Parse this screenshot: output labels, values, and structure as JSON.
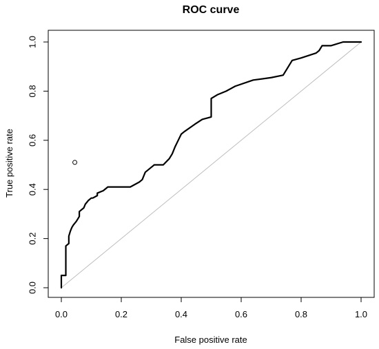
{
  "chart_data": {
    "type": "line",
    "title": "ROC curve",
    "xlabel": "False positive rate",
    "ylabel": "True positive rate",
    "xlim": [
      0,
      1
    ],
    "ylim": [
      0,
      1
    ],
    "x_ticks": [
      0.0,
      0.2,
      0.4,
      0.6,
      0.8,
      1.0
    ],
    "y_ticks": [
      0.0,
      0.2,
      0.4,
      0.6,
      0.8,
      1.0
    ],
    "x_tick_labels": [
      "0.0",
      "0.2",
      "0.4",
      "0.6",
      "0.8",
      "1.0"
    ],
    "y_tick_labels": [
      "0.0",
      "0.2",
      "0.4",
      "0.6",
      "0.8",
      "1.0"
    ],
    "grid": false,
    "series": [
      {
        "style": "solid-thick",
        "color": "#000000",
        "x": [
          0,
          0,
          0.01,
          0.015,
          0.015,
          0.025,
          0.025,
          0.03,
          0.035,
          0.04,
          0.05,
          0.055,
          0.06,
          0.06,
          0.07,
          0.075,
          0.08,
          0.09,
          0.1,
          0.105,
          0.12,
          0.12,
          0.14,
          0.155,
          0.23,
          0.26,
          0.27,
          0.28,
          0.3,
          0.31,
          0.34,
          0.36,
          0.37,
          0.38,
          0.39,
          0.4,
          0.41,
          0.445,
          0.47,
          0.5,
          0.5,
          0.52,
          0.55,
          0.58,
          0.64,
          0.7,
          0.74,
          0.77,
          0.8,
          0.85,
          0.86,
          0.87,
          0.9,
          0.94,
          1.0
        ],
        "y": [
          0,
          0.05,
          0.05,
          0.05,
          0.17,
          0.18,
          0.21,
          0.23,
          0.245,
          0.255,
          0.27,
          0.28,
          0.29,
          0.31,
          0.32,
          0.325,
          0.34,
          0.355,
          0.365,
          0.365,
          0.375,
          0.385,
          0.395,
          0.41,
          0.41,
          0.43,
          0.44,
          0.47,
          0.49,
          0.5,
          0.5,
          0.525,
          0.545,
          0.575,
          0.6,
          0.625,
          0.635,
          0.665,
          0.685,
          0.695,
          0.77,
          0.785,
          0.8,
          0.82,
          0.845,
          0.855,
          0.865,
          0.925,
          0.935,
          0.955,
          0.965,
          0.985,
          0.985,
          1.0,
          1.0
        ]
      },
      {
        "style": "diagonal-reference",
        "color": "#bdbdbd",
        "x": [
          0,
          1
        ],
        "y": [
          0,
          1
        ]
      }
    ],
    "annotations": [
      {
        "type": "point",
        "marker": "open-circle",
        "x": 0.045,
        "y": 0.51
      }
    ]
  }
}
